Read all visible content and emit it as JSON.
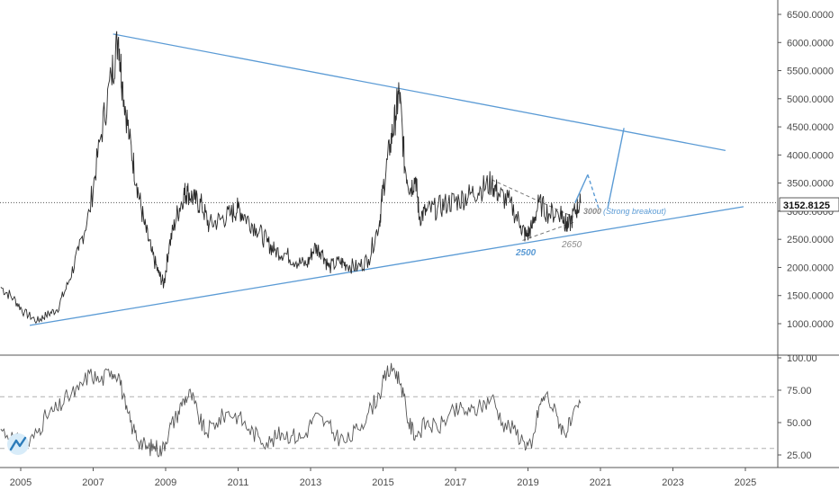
{
  "colors": {
    "price_line": "#2b2b2b",
    "trendline": "#5b9bd5",
    "annotation": "#5b9bd5",
    "annotation_gray": "#8a8a8a",
    "rsi_line": "#555555",
    "last_price_badge_bg": "#ffffff",
    "grid_dash": "#b0b0b0"
  },
  "last_price": {
    "value": 3152.8125,
    "label": "3152.8125"
  },
  "annotations": {
    "support_2500": "2500",
    "support_2650": "2650",
    "breakout_3000": "3000",
    "breakout_text": "(Strong breakout)"
  },
  "logo_icon": "tradingview-logo-icon",
  "chart_data": [
    {
      "type": "line",
      "title": "",
      "xlabel": "",
      "ylabel": "",
      "x_tick_labels": [
        "2005",
        "2007",
        "2009",
        "2011",
        "2013",
        "2015",
        "2017",
        "2019",
        "2021",
        "2023",
        "2025"
      ],
      "x_ticks": [
        2005,
        2007,
        2009,
        2011,
        2013,
        2015,
        2017,
        2019,
        2021,
        2023,
        2025
      ],
      "y_tick_labels": [
        "1000.0000",
        "1500.0000",
        "2000.0000",
        "2500.0000",
        "3000.0000",
        "3500.0000",
        "4000.0000",
        "4500.0000",
        "5000.0000",
        "5500.0000",
        "6000.0000",
        "6500.0000"
      ],
      "y_ticks": [
        1000,
        1500,
        2000,
        2500,
        3000,
        3500,
        4000,
        4500,
        5000,
        5500,
        6000,
        6500
      ],
      "xlim": [
        2004.45,
        2025.9
      ],
      "ylim": [
        500,
        6800
      ],
      "grid": false,
      "series": [
        {
          "values_x": [
            2004.45,
            2004.8,
            2005.1,
            2005.45,
            2005.7,
            2006.0,
            2006.3,
            2006.6,
            2006.9,
            2007.2,
            2007.5,
            2007.7,
            2007.8,
            2008.0,
            2008.2,
            2008.4,
            2008.6,
            2008.8,
            2008.95,
            2009.1,
            2009.3,
            2009.5,
            2009.6,
            2009.8,
            2010.0,
            2010.2,
            2010.5,
            2010.8,
            2011.0,
            2011.2,
            2011.5,
            2011.8,
            2012.0,
            2012.3,
            2012.6,
            2012.9,
            2013.1,
            2013.3,
            2013.5,
            2013.8,
            2014.0,
            2014.3,
            2014.6,
            2014.9,
            2015.0,
            2015.2,
            2015.35,
            2015.45,
            2015.6,
            2015.75,
            2015.9,
            2016.0,
            2016.2,
            2016.5,
            2016.8,
            2017.1,
            2017.4,
            2017.7,
            2018.0,
            2018.2,
            2018.5,
            2018.8,
            2018.95,
            2019.1,
            2019.3,
            2019.6,
            2019.9,
            2020.0,
            2020.1,
            2020.3,
            2020.45
          ],
          "values_y": [
            1650,
            1450,
            1200,
            1050,
            1150,
            1250,
            1700,
            2300,
            3000,
            4300,
            5400,
            6100,
            5300,
            4300,
            3500,
            2800,
            2300,
            1900,
            1700,
            2400,
            2900,
            3300,
            3350,
            3200,
            3100,
            2750,
            2850,
            2950,
            3050,
            2900,
            2700,
            2450,
            2300,
            2250,
            2100,
            2050,
            2350,
            2300,
            2000,
            2100,
            2050,
            2000,
            2150,
            2800,
            3400,
            4200,
            4700,
            5150,
            3800,
            3400,
            3600,
            2900,
            3000,
            3050,
            3150,
            3200,
            3300,
            3400,
            3500,
            3300,
            3150,
            2750,
            2550,
            2700,
            3150,
            2950,
            3000,
            2850,
            2700,
            3000,
            3150
          ]
        }
      ],
      "trendlines": [
        {
          "name": "",
          "x": [
            2007.55,
            2024.45
          ],
          "y": [
            6150,
            4080
          ]
        },
        {
          "name": "",
          "x": [
            2005.25,
            2024.95
          ],
          "y": [
            970,
            3080
          ]
        }
      ],
      "triangle_dashed": [
        {
          "x": [
            2018.0,
            2020.25
          ],
          "y": [
            3560,
            2900
          ]
        },
        {
          "x": [
            2018.85,
            2020.25
          ],
          "y": [
            2480,
            2800
          ]
        }
      ],
      "projection": {
        "x": [
          2020.3,
          2020.65,
          2020.95,
          2021.2,
          2021.65
        ],
        "y": [
          3150,
          3650,
          3050,
          3050,
          4480
        ]
      },
      "dashed_breakout_level": 3150
    },
    {
      "type": "line",
      "title": "",
      "x_ticks": [
        2005,
        2007,
        2009,
        2011,
        2013,
        2015,
        2017,
        2019,
        2021,
        2023,
        2025
      ],
      "y_tick_labels": [
        "25.00",
        "50.00",
        "75.00",
        "100.00"
      ],
      "y_ticks": [
        25,
        50,
        75,
        100
      ],
      "ylim": [
        20,
        100
      ],
      "reference_lines": [
        30,
        70
      ],
      "series": [
        {
          "values_x": [
            2004.45,
            2004.8,
            2005.1,
            2005.45,
            2005.7,
            2006.0,
            2006.3,
            2006.6,
            2006.9,
            2007.2,
            2007.5,
            2007.7,
            2007.9,
            2008.1,
            2008.3,
            2008.5,
            2008.7,
            2008.9,
            2009.1,
            2009.3,
            2009.5,
            2009.7,
            2009.9,
            2010.1,
            2010.4,
            2010.7,
            2011.0,
            2011.3,
            2011.6,
            2011.9,
            2012.2,
            2012.5,
            2012.8,
            2013.1,
            2013.4,
            2013.7,
            2014.0,
            2014.3,
            2014.6,
            2014.9,
            2015.1,
            2015.3,
            2015.5,
            2015.7,
            2015.9,
            2016.2,
            2016.5,
            2016.8,
            2017.1,
            2017.4,
            2017.7,
            2018.0,
            2018.3,
            2018.6,
            2018.9,
            2019.1,
            2019.3,
            2019.5,
            2019.8,
            2020.0,
            2020.2,
            2020.45
          ],
          "values_y": [
            45,
            38,
            30,
            42,
            55,
            60,
            70,
            75,
            88,
            82,
            90,
            88,
            60,
            45,
            35,
            30,
            32,
            28,
            45,
            55,
            68,
            72,
            55,
            42,
            50,
            58,
            55,
            45,
            38,
            35,
            42,
            40,
            38,
            55,
            50,
            40,
            35,
            45,
            58,
            72,
            88,
            92,
            80,
            50,
            40,
            50,
            45,
            55,
            60,
            58,
            62,
            70,
            50,
            45,
            35,
            30,
            62,
            72,
            55,
            42,
            50,
            65
          ]
        }
      ]
    }
  ]
}
